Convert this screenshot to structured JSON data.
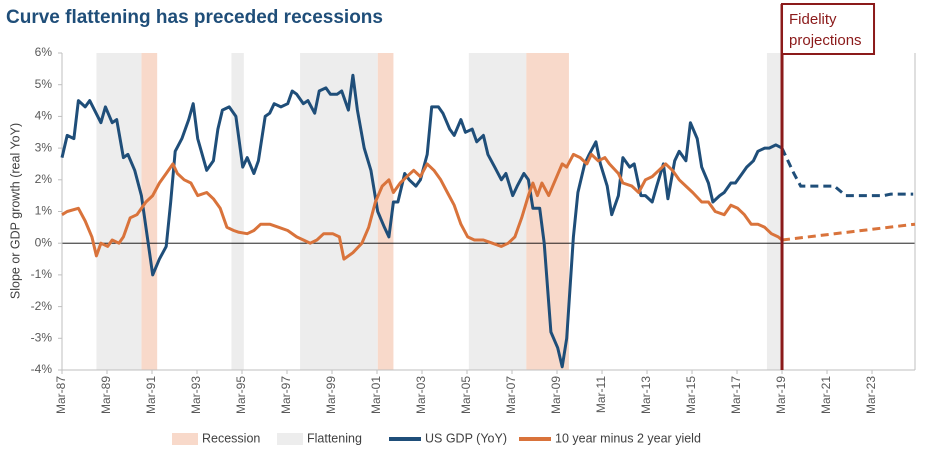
{
  "chart_data": {
    "type": "line",
    "title": "Curve flattening has preceded recessions",
    "y_label": "Slope or GDP growth (real YoY)",
    "xlim": [
      1987.17,
      2025.08
    ],
    "ylim": [
      -4,
      6
    ],
    "yticks": [
      {
        "value": -4,
        "label": "-4%"
      },
      {
        "value": -3,
        "label": "-3%"
      },
      {
        "value": -2,
        "label": "-2%"
      },
      {
        "value": -1,
        "label": "-1%"
      },
      {
        "value": 0,
        "label": "0%"
      },
      {
        "value": 1,
        "label": "1%"
      },
      {
        "value": 2,
        "label": "2%"
      },
      {
        "value": 3,
        "label": "3%"
      },
      {
        "value": 4,
        "label": "4%"
      },
      {
        "value": 5,
        "label": "5%"
      },
      {
        "value": 6,
        "label": "6%"
      }
    ],
    "xticks": [
      {
        "value": 1987.17,
        "label": "Mar-87"
      },
      {
        "value": 1989.17,
        "label": "Mar-89"
      },
      {
        "value": 1991.17,
        "label": "Mar-91"
      },
      {
        "value": 1993.17,
        "label": "Mar-93"
      },
      {
        "value": 1995.17,
        "label": "Mar-95"
      },
      {
        "value": 1997.17,
        "label": "Mar-97"
      },
      {
        "value": 1999.17,
        "label": "Mar-99"
      },
      {
        "value": 2001.17,
        "label": "Mar-01"
      },
      {
        "value": 2003.17,
        "label": "Mar-03"
      },
      {
        "value": 2005.17,
        "label": "Mar-05"
      },
      {
        "value": 2007.17,
        "label": "Mar-07"
      },
      {
        "value": 2009.17,
        "label": "Mar-09"
      },
      {
        "value": 2011.17,
        "label": "Mar-11"
      },
      {
        "value": 2013.17,
        "label": "Mar-13"
      },
      {
        "value": 2015.17,
        "label": "Mar-15"
      },
      {
        "value": 2017.17,
        "label": "Mar-17"
      },
      {
        "value": 2019.17,
        "label": "Mar-19"
      },
      {
        "value": 2021.17,
        "label": "Mar-21"
      },
      {
        "value": 2023.17,
        "label": "Mar-23"
      }
    ],
    "zero_line": true,
    "shaded": [
      {
        "name": "Recession",
        "color": "#f8d9ca",
        "ranges": [
          [
            1990.7,
            1991.4
          ],
          [
            2001.2,
            2001.9
          ],
          [
            2007.8,
            2009.7
          ]
        ]
      },
      {
        "name": "Flattening",
        "color": "#ededed",
        "ranges": [
          [
            1988.7,
            1990.7
          ],
          [
            1994.7,
            1995.25
          ],
          [
            1997.75,
            2001.2
          ],
          [
            2005.25,
            2007.8
          ],
          [
            2018.5,
            2019.17
          ]
        ]
      }
    ],
    "series": [
      {
        "name": "US GDP (YoY)",
        "color": "#1f4e79",
        "x": [
          1987.17,
          1987.4,
          1987.7,
          1987.9,
          1988.2,
          1988.4,
          1988.9,
          1989.1,
          1989.4,
          1989.6,
          1989.9,
          1990.1,
          1990.4,
          1990.7,
          1991.0,
          1991.2,
          1991.5,
          1991.8,
          1992.0,
          1992.2,
          1992.5,
          1992.8,
          1993.0,
          1993.2,
          1993.6,
          1993.9,
          1994.1,
          1994.3,
          1994.6,
          1994.9,
          1995.2,
          1995.4,
          1995.7,
          1995.9,
          1996.2,
          1996.4,
          1996.6,
          1996.9,
          1997.2,
          1997.4,
          1997.6,
          1997.9,
          1998.1,
          1998.4,
          1998.6,
          1998.9,
          1999.1,
          1999.4,
          1999.6,
          1999.9,
          2000.1,
          2000.3,
          2000.6,
          2000.9,
          2001.2,
          2001.5,
          2001.7,
          2001.9,
          2002.1,
          2002.4,
          2002.6,
          2002.9,
          2003.1,
          2003.4,
          2003.6,
          2003.9,
          2004.1,
          2004.4,
          2004.6,
          2004.9,
          2005.1,
          2005.4,
          2005.6,
          2005.9,
          2006.1,
          2006.4,
          2006.7,
          2006.9,
          2007.2,
          2007.4,
          2007.7,
          2007.9,
          2008.1,
          2008.4,
          2008.6,
          2008.9,
          2009.2,
          2009.4,
          2009.6,
          2009.9,
          2010.1,
          2010.4,
          2010.6,
          2010.9,
          2011.1,
          2011.4,
          2011.6,
          2011.9,
          2012.1,
          2012.4,
          2012.6,
          2012.9,
          2013.1,
          2013.4,
          2013.6,
          2013.9,
          2014.1,
          2014.4,
          2014.6,
          2014.9,
          2015.1,
          2015.4,
          2015.6,
          2015.9,
          2016.1,
          2016.4,
          2016.6,
          2016.9,
          2017.1,
          2017.4,
          2017.6,
          2017.9,
          2018.1,
          2018.4,
          2018.6,
          2018.9,
          2019.17
        ],
        "values": [
          2.7,
          3.4,
          3.3,
          4.5,
          4.3,
          4.5,
          3.8,
          4.3,
          3.8,
          3.9,
          2.7,
          2.8,
          2.3,
          1.5,
          0.0,
          -1.0,
          -0.5,
          -0.1,
          1.3,
          2.9,
          3.3,
          3.9,
          4.4,
          3.3,
          2.3,
          2.6,
          3.6,
          4.2,
          4.3,
          4.0,
          2.4,
          2.7,
          2.2,
          2.6,
          4.0,
          4.1,
          4.4,
          4.3,
          4.4,
          4.8,
          4.7,
          4.4,
          4.5,
          4.1,
          4.8,
          4.9,
          4.7,
          4.7,
          4.8,
          4.2,
          5.3,
          4.2,
          3.0,
          2.3,
          1.0,
          0.5,
          0.2,
          1.3,
          1.3,
          2.2,
          2.0,
          1.8,
          2.0,
          2.8,
          4.3,
          4.3,
          4.1,
          3.6,
          3.4,
          3.9,
          3.5,
          3.6,
          3.2,
          3.4,
          2.8,
          2.4,
          2.0,
          2.2,
          1.5,
          1.8,
          2.2,
          2.0,
          1.1,
          1.1,
          0.0,
          -2.8,
          -3.3,
          -3.9,
          -3.0,
          0.2,
          1.6,
          2.5,
          2.8,
          3.2,
          2.5,
          1.8,
          0.9,
          1.5,
          2.7,
          2.4,
          2.5,
          1.5,
          1.5,
          1.3,
          1.8,
          2.5,
          1.4,
          2.6,
          2.9,
          2.6,
          3.8,
          3.3,
          2.4,
          1.9,
          1.3,
          1.5,
          1.6,
          1.9,
          1.9,
          2.2,
          2.4,
          2.6,
          2.9,
          3.0,
          3.0,
          3.1,
          3.0
        ],
        "projection": {
          "x": [
            2019.17,
            2019.7,
            2020.0,
            2021.5,
            2022.0,
            2023.7,
            2024.0,
            2025.0
          ],
          "values": [
            3.0,
            2.2,
            1.8,
            1.8,
            1.5,
            1.5,
            1.55,
            1.55
          ]
        }
      },
      {
        "name": "10 year minus 2 year yield",
        "color": "#d9733b",
        "x": [
          1987.17,
          1987.4,
          1987.9,
          1988.2,
          1988.5,
          1988.7,
          1988.9,
          1989.2,
          1989.4,
          1989.7,
          1989.9,
          1990.2,
          1990.5,
          1990.9,
          1991.2,
          1991.5,
          1991.8,
          1992.1,
          1992.3,
          1992.6,
          1992.9,
          1993.2,
          1993.6,
          1993.9,
          1994.2,
          1994.5,
          1994.8,
          1995.0,
          1995.4,
          1995.7,
          1996.0,
          1996.4,
          1996.8,
          1997.2,
          1997.6,
          1997.9,
          1998.2,
          1998.5,
          1998.8,
          1999.2,
          1999.5,
          1999.7,
          2000.1,
          2000.5,
          2000.8,
          2001.1,
          2001.4,
          2001.7,
          2001.9,
          2002.2,
          2002.5,
          2002.8,
          2003.1,
          2003.4,
          2003.7,
          2004.0,
          2004.3,
          2004.6,
          2004.9,
          2005.2,
          2005.5,
          2005.9,
          2006.3,
          2006.7,
          2007.0,
          2007.3,
          2007.6,
          2007.9,
          2008.1,
          2008.3,
          2008.5,
          2008.8,
          2009.1,
          2009.4,
          2009.6,
          2009.9,
          2010.2,
          2010.5,
          2010.7,
          2011.0,
          2011.3,
          2011.5,
          2011.9,
          2012.1,
          2012.5,
          2012.8,
          2013.1,
          2013.4,
          2013.7,
          2014.0,
          2014.3,
          2014.6,
          2014.9,
          2015.2,
          2015.6,
          2015.9,
          2016.2,
          2016.6,
          2016.9,
          2017.2,
          2017.5,
          2017.8,
          2018.1,
          2018.4,
          2018.7,
          2019.0,
          2019.17
        ],
        "values": [
          0.9,
          1.0,
          1.1,
          0.7,
          0.2,
          -0.4,
          0.0,
          -0.1,
          0.1,
          0.0,
          0.2,
          0.8,
          0.9,
          1.3,
          1.5,
          1.9,
          2.2,
          2.5,
          2.2,
          2.0,
          1.9,
          1.5,
          1.6,
          1.4,
          1.1,
          0.5,
          0.4,
          0.35,
          0.3,
          0.4,
          0.6,
          0.6,
          0.5,
          0.4,
          0.2,
          0.1,
          0.0,
          0.1,
          0.3,
          0.3,
          0.2,
          -0.5,
          -0.3,
          0.0,
          0.5,
          1.3,
          1.8,
          2.0,
          1.6,
          1.9,
          2.1,
          2.3,
          2.1,
          2.5,
          2.3,
          2.0,
          1.6,
          1.2,
          0.6,
          0.2,
          0.1,
          0.1,
          0.0,
          -0.1,
          0.0,
          0.2,
          0.8,
          1.5,
          1.9,
          1.5,
          1.9,
          1.5,
          2.0,
          2.5,
          2.4,
          2.8,
          2.7,
          2.5,
          2.8,
          2.6,
          2.7,
          2.5,
          2.2,
          1.9,
          1.8,
          1.6,
          2.0,
          2.1,
          2.3,
          2.5,
          2.3,
          2.0,
          1.8,
          1.6,
          1.3,
          1.3,
          1.0,
          0.9,
          1.2,
          1.1,
          0.9,
          0.6,
          0.6,
          0.5,
          0.3,
          0.2,
          0.1
        ],
        "projection": {
          "x": [
            2019.17,
            2025.08
          ],
          "values": [
            0.1,
            0.6
          ]
        }
      }
    ],
    "marker": {
      "x": 2019.17,
      "color": "#8b1a1a",
      "lines": [
        "Fidelity",
        "projections"
      ]
    }
  }
}
